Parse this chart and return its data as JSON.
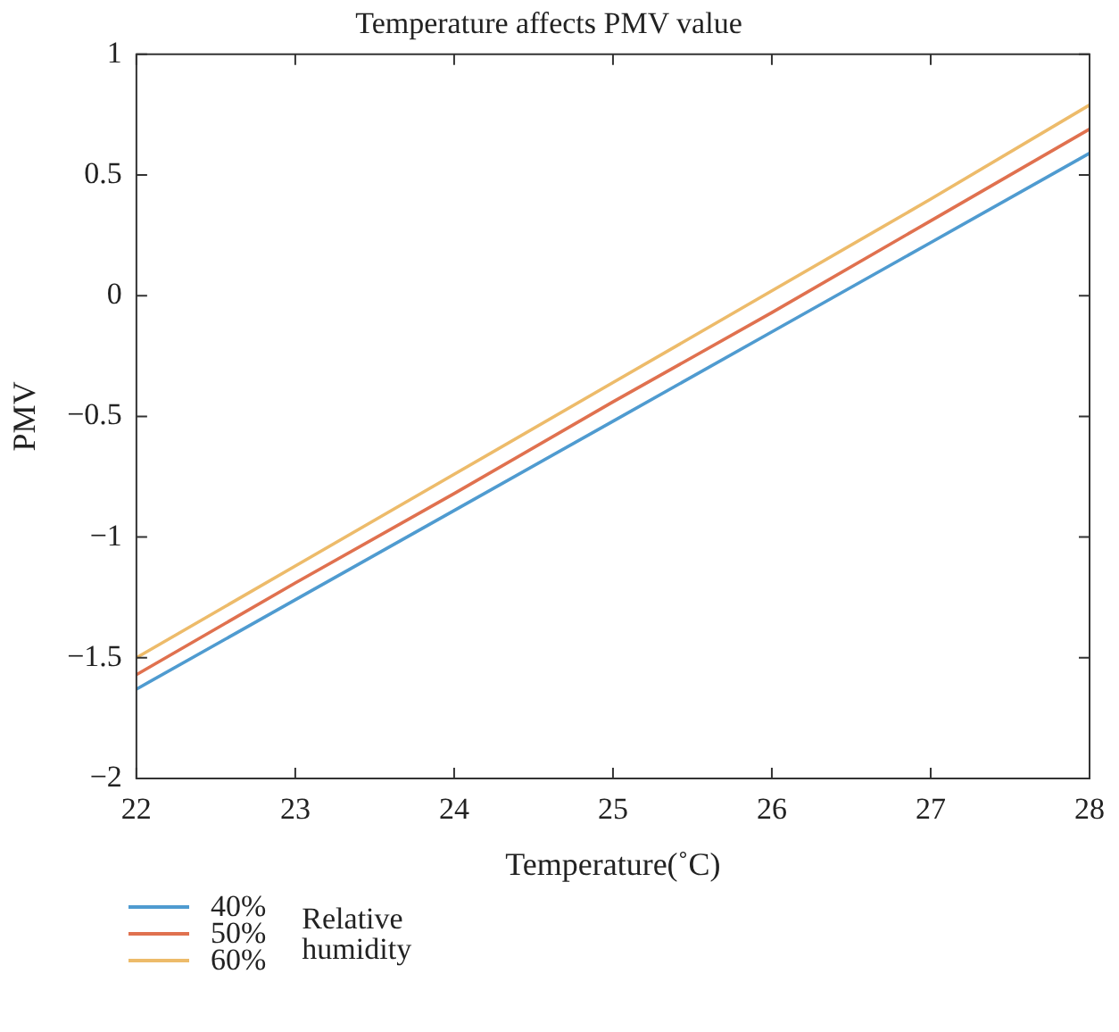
{
  "chart_data": {
    "type": "line",
    "title": "Temperature affects PMV value",
    "xlabel": "Temperature(˚C)",
    "ylabel": "PMV",
    "legend_title": "Relative humidity",
    "legend": "bottom left",
    "grid": false,
    "marker": "none",
    "line_style": "solid",
    "x": [
      22,
      23,
      24,
      25,
      26,
      27,
      28
    ],
    "xlim": [
      22,
      28
    ],
    "xticks": [
      22,
      23,
      24,
      25,
      26,
      27,
      28
    ],
    "ylim": [
      -2,
      1
    ],
    "yticks": [
      -2,
      -1.5,
      -1,
      -0.5,
      0,
      0.5,
      1
    ],
    "series": [
      {
        "name": "40%",
        "color": "#4f9bd0",
        "values": [
          -1.63,
          -1.26,
          -0.89,
          -0.52,
          -0.15,
          0.22,
          0.59
        ]
      },
      {
        "name": "50%",
        "color": "#e0714f",
        "values": [
          -1.57,
          -1.19,
          -0.82,
          -0.44,
          -0.07,
          0.31,
          0.69
        ]
      },
      {
        "name": "60%",
        "color": "#edbb6a",
        "values": [
          -1.5,
          -1.12,
          -0.74,
          -0.36,
          0.02,
          0.4,
          0.79
        ]
      }
    ]
  }
}
